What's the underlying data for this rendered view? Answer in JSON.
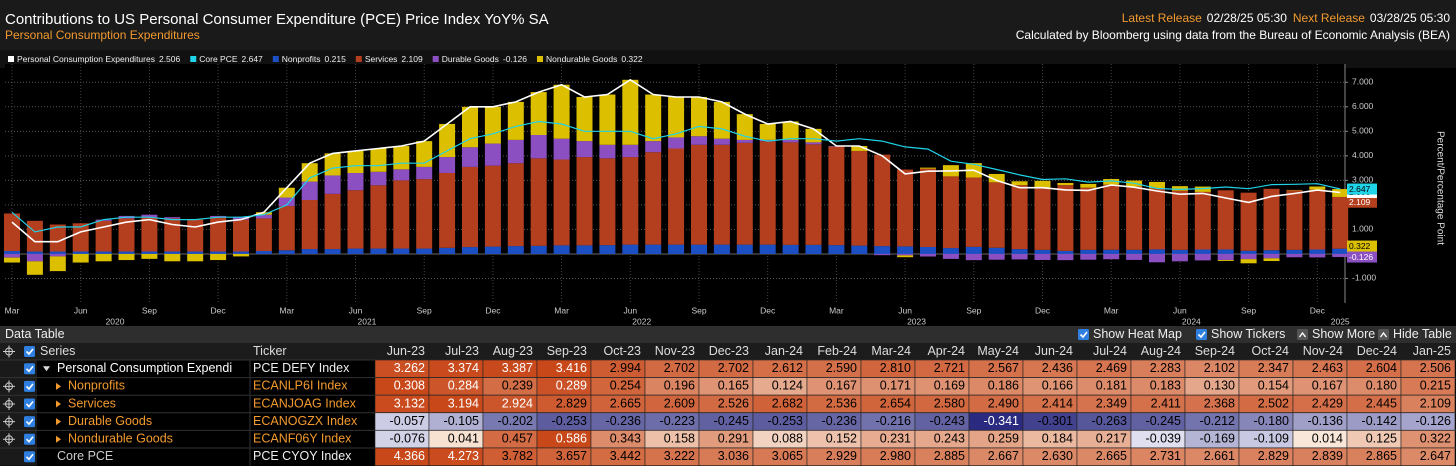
{
  "header": {
    "title": "Contributions to US Personal Consumer Expenditure (PCE) Price Index YoY% SA",
    "subtitle": "Personal Consumption Expenditures",
    "latest_release_label": "Latest Release",
    "latest_release": "02/28/25 05:30",
    "next_release_label": "Next Release",
    "next_release": "03/28/25 05:30",
    "source": "Calculated by Bloomberg using data from the Bureau of Economic Analysis (BEA)"
  },
  "chart_data": {
    "type": "bar",
    "y_label": "Percent/Percentage Point",
    "categories": [
      "2020-03",
      "2020-04",
      "2020-05",
      "2020-06",
      "2020-07",
      "2020-08",
      "2020-09",
      "2020-10",
      "2020-11",
      "2020-12",
      "2021-01",
      "2021-02",
      "2021-03",
      "2021-04",
      "2021-05",
      "2021-06",
      "2021-07",
      "2021-08",
      "2021-09",
      "2021-10",
      "2021-11",
      "2021-12",
      "2022-01",
      "2022-02",
      "2022-03",
      "2022-04",
      "2022-05",
      "2022-06",
      "2022-07",
      "2022-08",
      "2022-09",
      "2022-10",
      "2022-11",
      "2022-12",
      "2023-01",
      "2023-02",
      "2023-03",
      "2023-04",
      "2023-05",
      "2023-06",
      "2023-07",
      "2023-08",
      "2023-09",
      "2023-10",
      "2023-11",
      "2023-12",
      "2024-01",
      "2024-02",
      "2024-03",
      "2024-04",
      "2024-05",
      "2024-06",
      "2024-07",
      "2024-08",
      "2024-09",
      "2024-10",
      "2024-11",
      "2024-12",
      "2025-01"
    ],
    "xticks": [
      {
        "value": "2020-03",
        "label": "Mar"
      },
      {
        "value": "2020-06",
        "label": "Jun"
      },
      {
        "value": "2020-09",
        "label": "Sep"
      },
      {
        "value": "2020-12",
        "label": "Dec"
      },
      {
        "value": "2021-03",
        "label": "Mar"
      },
      {
        "value": "2021-06",
        "label": "Jun"
      },
      {
        "value": "2021-09",
        "label": "Sep"
      },
      {
        "value": "2021-12",
        "label": "Dec"
      },
      {
        "value": "2022-03",
        "label": "Mar"
      },
      {
        "value": "2022-06",
        "label": "Jun"
      },
      {
        "value": "2022-09",
        "label": "Sep"
      },
      {
        "value": "2022-12",
        "label": "Dec"
      },
      {
        "value": "2023-03",
        "label": "Mar"
      },
      {
        "value": "2023-06",
        "label": "Jun"
      },
      {
        "value": "2023-09",
        "label": "Sep"
      },
      {
        "value": "2023-12",
        "label": "Dec"
      },
      {
        "value": "2024-03",
        "label": "Mar"
      },
      {
        "value": "2024-06",
        "label": "Jun"
      },
      {
        "value": "2024-09",
        "label": "Sep"
      },
      {
        "value": "2024-12",
        "label": "Dec"
      }
    ],
    "year_ticks": [
      2020,
      2021,
      2022,
      2023,
      2024,
      2025
    ],
    "ylim": [
      -2,
      7.5
    ],
    "yticks": [
      {
        "value": -1,
        "label": "-1.000"
      },
      {
        "value": 1,
        "label": "1.000"
      },
      {
        "value": 2,
        "label": "2.000"
      },
      {
        "value": 3,
        "label": "3.000"
      },
      {
        "value": 4,
        "label": "4.000"
      },
      {
        "value": 5,
        "label": "5.000"
      },
      {
        "value": 6,
        "label": "6.000"
      },
      {
        "value": 7,
        "label": "7.000"
      }
    ],
    "grid": true,
    "series": [
      {
        "name": "Personal Consumption Expenditures",
        "type": "line",
        "color": "#ffffff",
        "values": [
          1.3,
          0.5,
          0.5,
          0.9,
          1.1,
          1.3,
          1.4,
          1.2,
          1.1,
          1.3,
          1.4,
          1.7,
          2.7,
          3.7,
          4.1,
          4.2,
          4.3,
          4.4,
          4.6,
          5.3,
          6.0,
          6.0,
          6.2,
          6.6,
          6.9,
          6.4,
          6.5,
          7.1,
          6.5,
          6.4,
          6.4,
          6.2,
          5.7,
          5.3,
          5.4,
          5.1,
          4.4,
          4.4,
          4.0,
          3.262,
          3.374,
          3.387,
          3.416,
          2.994,
          2.702,
          2.702,
          2.612,
          2.59,
          2.81,
          2.721,
          2.567,
          2.436,
          2.469,
          2.283,
          2.102,
          2.347,
          2.463,
          2.604,
          2.506
        ]
      },
      {
        "name": "Core PCE",
        "type": "line",
        "color": "#1fd3e8",
        "values": [
          1.7,
          0.9,
          1.1,
          1.1,
          1.4,
          1.5,
          1.5,
          1.4,
          1.4,
          1.5,
          1.5,
          1.6,
          2.0,
          3.1,
          3.5,
          3.6,
          3.6,
          3.7,
          3.7,
          4.2,
          4.7,
          4.9,
          5.2,
          5.4,
          5.3,
          5.0,
          5.0,
          5.0,
          4.7,
          4.9,
          5.2,
          5.1,
          4.8,
          4.6,
          4.7,
          4.7,
          4.6,
          4.7,
          4.6,
          4.366,
          4.273,
          3.782,
          3.657,
          3.442,
          3.222,
          3.036,
          3.065,
          2.929,
          2.98,
          2.885,
          2.667,
          2.63,
          2.665,
          2.731,
          2.661,
          2.829,
          2.839,
          2.865,
          2.647
        ]
      },
      {
        "name": "Nonprofits",
        "type": "bar",
        "color": "#1d4fc4",
        "values": [
          0.12,
          0.1,
          0.1,
          0.1,
          0.1,
          0.1,
          0.1,
          0.1,
          0.1,
          0.1,
          0.1,
          0.12,
          0.15,
          0.2,
          0.2,
          0.22,
          0.22,
          0.22,
          0.22,
          0.25,
          0.28,
          0.3,
          0.32,
          0.33,
          0.35,
          0.35,
          0.36,
          0.38,
          0.38,
          0.38,
          0.38,
          0.38,
          0.38,
          0.38,
          0.37,
          0.37,
          0.36,
          0.34,
          0.32,
          0.308,
          0.284,
          0.239,
          0.289,
          0.254,
          0.196,
          0.165,
          0.124,
          0.167,
          0.171,
          0.169,
          0.186,
          0.166,
          0.181,
          0.183,
          0.13,
          0.154,
          0.167,
          0.18,
          0.215
        ]
      },
      {
        "name": "Services",
        "type": "bar",
        "color": "#b43f1e",
        "values": [
          1.53,
          1.25,
          1.1,
          1.15,
          1.25,
          1.35,
          1.4,
          1.35,
          1.3,
          1.4,
          1.3,
          1.33,
          1.8,
          2.0,
          2.25,
          2.38,
          2.58,
          2.78,
          2.83,
          3.05,
          3.27,
          3.3,
          3.38,
          3.57,
          3.5,
          3.6,
          3.54,
          3.57,
          3.77,
          3.92,
          4.07,
          4.07,
          4.15,
          4.22,
          4.18,
          4.1,
          4.02,
          3.86,
          3.73,
          3.132,
          3.194,
          2.924,
          2.829,
          2.665,
          2.609,
          2.526,
          2.682,
          2.536,
          2.654,
          2.58,
          2.49,
          2.414,
          2.349,
          2.411,
          2.368,
          2.502,
          2.429,
          2.445,
          2.109
        ]
      },
      {
        "name": "Durable Goods",
        "type": "bar",
        "color": "#8b4fc2",
        "values": [
          -0.15,
          -0.3,
          -0.1,
          0.0,
          0.05,
          0.1,
          0.1,
          0.05,
          0.0,
          0.05,
          0.1,
          0.15,
          0.35,
          0.75,
          0.75,
          0.7,
          0.55,
          0.45,
          0.5,
          0.65,
          0.8,
          0.9,
          0.95,
          0.95,
          0.85,
          0.65,
          0.55,
          0.5,
          0.45,
          0.45,
          0.35,
          0.25,
          0.12,
          0.05,
          0.1,
          0.08,
          0.02,
          0.0,
          -0.05,
          -0.057,
          -0.105,
          -0.202,
          -0.253,
          -0.236,
          -0.223,
          -0.245,
          -0.253,
          -0.236,
          -0.216,
          -0.243,
          -0.341,
          -0.301,
          -0.263,
          -0.245,
          -0.212,
          -0.18,
          -0.136,
          -0.142,
          -0.126
        ]
      },
      {
        "name": "Nondurable Goods",
        "type": "bar",
        "color": "#dcc000",
        "values": [
          -0.2,
          -0.55,
          -0.6,
          -0.35,
          -0.3,
          -0.25,
          -0.2,
          -0.3,
          -0.3,
          -0.25,
          -0.1,
          0.1,
          0.4,
          0.75,
          0.9,
          0.9,
          0.95,
          0.95,
          1.05,
          1.35,
          1.65,
          1.5,
          1.55,
          1.75,
          2.2,
          1.8,
          2.05,
          2.65,
          1.9,
          1.65,
          1.6,
          1.5,
          1.05,
          0.65,
          0.75,
          0.55,
          0.0,
          0.2,
          0.0,
          -0.076,
          0.041,
          0.457,
          0.586,
          0.343,
          0.158,
          0.291,
          0.088,
          0.152,
          0.231,
          0.243,
          0.259,
          0.184,
          0.217,
          -0.039,
          -0.169,
          -0.109,
          0.014,
          0.125,
          0.322
        ]
      }
    ]
  },
  "table": {
    "title": "Data Table",
    "controls": [
      "Show Heat Map",
      "Show Tickers",
      "Show More",
      "Hide Table"
    ],
    "columns": [
      "Series",
      "Ticker",
      "Jun-23",
      "Jul-23",
      "Aug-23",
      "Sep-23",
      "Oct-23",
      "Nov-23",
      "Dec-23",
      "Jan-24",
      "Feb-24",
      "Mar-24",
      "Apr-24",
      "May-24",
      "Jun-24",
      "Jul-24",
      "Aug-24",
      "Sep-24",
      "Oct-24",
      "Nov-24",
      "Dec-24",
      "Jan-25"
    ],
    "rows": [
      [
        "Personal Consumption Expendi",
        "PCE DEFY Index",
        "3.262",
        "3.374",
        "3.387",
        "3.416",
        "2.994",
        "2.702",
        "2.702",
        "2.612",
        "2.590",
        "2.810",
        "2.721",
        "2.567",
        "2.436",
        "2.469",
        "2.283",
        "2.102",
        "2.347",
        "2.463",
        "2.604",
        "2.506"
      ],
      [
        "Nonprofits",
        "ECANLP6I Index",
        "0.308",
        "0.284",
        "0.239",
        "0.289",
        "0.254",
        "0.196",
        "0.165",
        "0.124",
        "0.167",
        "0.171",
        "0.169",
        "0.186",
        "0.166",
        "0.181",
        "0.183",
        "0.130",
        "0.154",
        "0.167",
        "0.180",
        "0.215"
      ],
      [
        "Services",
        "ECANJOAG Index",
        "3.132",
        "3.194",
        "2.924",
        "2.829",
        "2.665",
        "2.609",
        "2.526",
        "2.682",
        "2.536",
        "2.654",
        "2.580",
        "2.490",
        "2.414",
        "2.349",
        "2.411",
        "2.368",
        "2.502",
        "2.429",
        "2.445",
        "2.109"
      ],
      [
        "Durable Goods",
        "ECANOGZX Index",
        "-0.057",
        "-0.105",
        "-0.202",
        "-0.253",
        "-0.236",
        "-0.223",
        "-0.245",
        "-0.253",
        "-0.236",
        "-0.216",
        "-0.243",
        "-0.341",
        "-0.301",
        "-0.263",
        "-0.245",
        "-0.212",
        "-0.180",
        "-0.136",
        "-0.142",
        "-0.126"
      ],
      [
        "Nondurable Goods",
        "ECANF06Y Index",
        "-0.076",
        "0.041",
        "0.457",
        "0.586",
        "0.343",
        "0.158",
        "0.291",
        "0.088",
        "0.152",
        "0.231",
        "0.243",
        "0.259",
        "0.184",
        "0.217",
        "-0.039",
        "-0.169",
        "-0.109",
        "0.014",
        "0.125",
        "0.322"
      ],
      [
        "Core PCE",
        "PCE CYOY Index",
        "4.366",
        "4.273",
        "3.782",
        "3.657",
        "3.442",
        "3.222",
        "3.036",
        "3.065",
        "2.929",
        "2.980",
        "2.885",
        "2.667",
        "2.630",
        "2.665",
        "2.731",
        "2.661",
        "2.829",
        "2.839",
        "2.865",
        "2.647"
      ]
    ]
  }
}
